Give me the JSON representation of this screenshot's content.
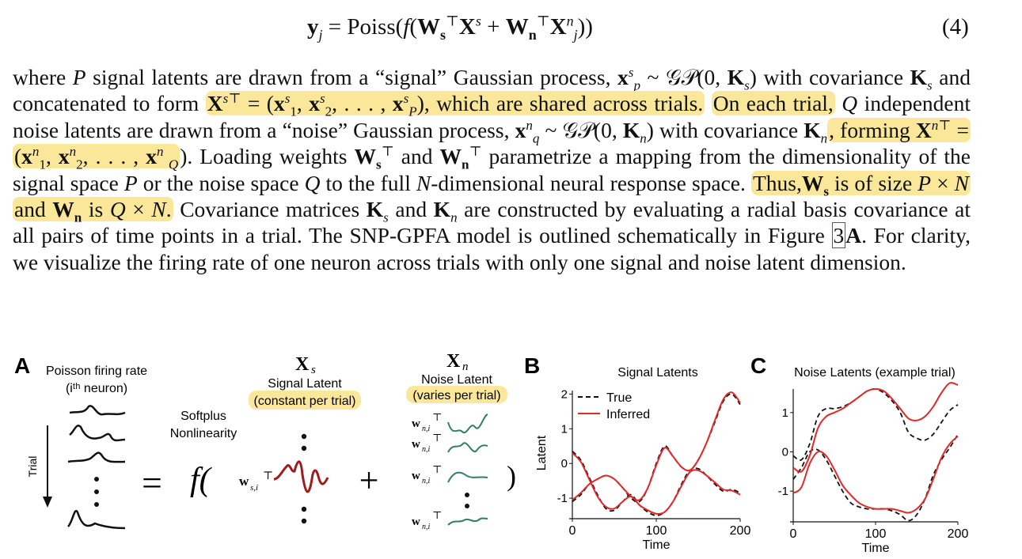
{
  "equation": {
    "lhs": "y",
    "lhs_sub": "j",
    "eq_text": "= Poiss(",
    "f": "f",
    "W_s": "W",
    "W_s_sub": "s",
    "T": "⊤",
    "X": "X",
    "X_sup_s": "s",
    "plus": "+",
    "W_n": "W",
    "W_n_sub": "n",
    "X_sup_n": "n",
    "X_sub_j": "j",
    "close": "))",
    "number": "(4)"
  },
  "paragraph": {
    "s01": "where ",
    "s02": "P",
    "s03": " signal latents are drawn from a “signal” Gaussian process, ",
    "s04": "x",
    "s05": " ~ ",
    "s06": "𝒢𝒫(0, ",
    "s07": "K",
    "s08": ") with covariance ",
    "s09": " and concatenated to form ",
    "s10": " = (",
    "s11": ", . . . , ",
    "s12": "), which are shared across trials.",
    "s13": "On each trial,",
    "s14": " Q",
    "s15": " independent noise latents are drawn from a “noise” Gaussian process, ",
    "s16": ") with covariance ",
    "s17": ", forming ",
    "s18": "). Loading weights ",
    "s19": " and ",
    "s20": " parametrize a mapping from the dimensionality of the signal space ",
    "s21": " or the noise space ",
    "s22": " to the full ",
    "s23": "N",
    "s24": "-dimensional neural response space. ",
    "s25": "Thus,",
    "s26": " is of size ",
    "s27": " × ",
    "s28": " and ",
    "s29": " is ",
    "s30": ".",
    "s31": " Covariance matrices ",
    "s32": " are constructed by evaluating a radial basis covariance at all pairs of time points in a trial. The SNP-GPFA model is outlined schematically in Figure ",
    "s33": "3",
    "s34": "A",
    "s35": ". For clarity, we visualize the firing rate of one neuron across trials with only one signal and noise latent dimension.",
    "p_sub": "p",
    "q_sub": "q",
    "s_sub": "s",
    "n_sub": "n",
    "one": "1",
    "two": "2"
  },
  "figure": {
    "panel_a": {
      "label": "A",
      "firing_title": "Poisson firing rate",
      "firing_sub": "(iᵗʰ neuron)",
      "trial_label": "Trial",
      "equals": "=",
      "nonlinearity_1": "Softplus",
      "nonlinearity_2": "Nonlinearity",
      "f_open": "f(",
      "signal_symbol": "X",
      "signal_symbol_sub": "s",
      "signal_title": "Signal Latent",
      "signal_note": "(constant per trial)",
      "weight_signal": "w",
      "weight_signal_sub": "s,i",
      "plus": "+",
      "noise_symbol": "X",
      "noise_symbol_sub": "n",
      "noise_title": "Noise Latent",
      "noise_note": "(varies per trial)",
      "weight_noise": "w",
      "weight_noise_sub": "n,i",
      "transpose": "⊤",
      "close_paren": ")"
    },
    "colors": {
      "signal": "#a01b1b",
      "noise": "#2f7f63",
      "inferred": "#e02a2a",
      "true": "#111111",
      "highlight": "#fbe79a"
    }
  },
  "chart_data": [
    {
      "panel": "B",
      "type": "line",
      "title": "Signal Latents",
      "xlabel": "Time",
      "ylabel": "Latent",
      "xlim": [
        0,
        200
      ],
      "ylim": [
        -1.5,
        2.1
      ],
      "xticks": [
        0,
        100,
        200
      ],
      "yticks": [
        -1,
        0,
        1,
        2
      ],
      "legend": "top-left",
      "series": [
        {
          "name": "True",
          "style": "dashed",
          "color": "#111111",
          "x": [
            0,
            10,
            20,
            30,
            40,
            50,
            60,
            70,
            80,
            90,
            100,
            110,
            120,
            130,
            140,
            150,
            160,
            170,
            180,
            190,
            200
          ],
          "y": [
            0.35,
            0.1,
            -0.4,
            -0.9,
            -1.3,
            -1.35,
            -1.1,
            -0.9,
            -1.2,
            -1.4,
            -1.5,
            -1.4,
            -1.1,
            -0.6,
            -0.2,
            -0.15,
            -0.35,
            -0.6,
            -0.8,
            -0.75,
            -0.85
          ]
        },
        {
          "name": "True",
          "style": "dashed",
          "color": "#111111",
          "x": [
            0,
            10,
            20,
            30,
            40,
            50,
            60,
            70,
            80,
            90,
            100,
            110,
            120,
            130,
            140,
            150,
            160,
            170,
            180,
            190,
            200
          ],
          "y": [
            -1.1,
            -0.9,
            -0.6,
            -0.45,
            -0.35,
            -0.45,
            -0.7,
            -1.0,
            -1.1,
            -0.7,
            0.0,
            0.5,
            0.2,
            -0.1,
            -0.2,
            0.1,
            0.6,
            1.2,
            1.8,
            2.0,
            1.7
          ]
        },
        {
          "name": "Inferred",
          "style": "solid",
          "color": "#e02a2a",
          "x": [
            0,
            10,
            20,
            30,
            40,
            50,
            60,
            70,
            80,
            90,
            100,
            110,
            120,
            130,
            140,
            150,
            160,
            170,
            180,
            190,
            200
          ],
          "y": [
            0.3,
            0.05,
            -0.45,
            -0.95,
            -1.25,
            -1.3,
            -1.1,
            -0.95,
            -1.2,
            -1.35,
            -1.45,
            -1.4,
            -1.1,
            -0.65,
            -0.25,
            -0.2,
            -0.35,
            -0.55,
            -0.75,
            -0.78,
            -0.9
          ]
        },
        {
          "name": "Inferred",
          "style": "solid",
          "color": "#e02a2a",
          "x": [
            0,
            10,
            20,
            30,
            40,
            50,
            60,
            70,
            80,
            90,
            100,
            110,
            120,
            130,
            140,
            150,
            160,
            170,
            180,
            190,
            200
          ],
          "y": [
            -1.05,
            -0.85,
            -0.6,
            -0.45,
            -0.35,
            -0.45,
            -0.7,
            -0.95,
            -1.05,
            -0.7,
            -0.05,
            0.45,
            0.2,
            -0.1,
            -0.2,
            0.1,
            0.6,
            1.25,
            1.85,
            2.05,
            1.75
          ]
        }
      ]
    },
    {
      "panel": "C",
      "type": "line",
      "title": "Noise Latents (example trial)",
      "xlabel": "Time",
      "ylabel": "",
      "xlim": [
        0,
        200
      ],
      "ylim": [
        -1.7,
        1.6
      ],
      "xticks": [
        0,
        100,
        200
      ],
      "yticks": [
        -1,
        0,
        1
      ],
      "legend": "none",
      "series": [
        {
          "name": "",
          "style": "dashed",
          "color": "#111111",
          "x": [
            0,
            10,
            20,
            30,
            40,
            50,
            60,
            70,
            80,
            90,
            100,
            110,
            120,
            130,
            140,
            150,
            160,
            170,
            180,
            190,
            200
          ],
          "y": [
            -0.1,
            -0.2,
            0.2,
            0.9,
            1.1,
            1.1,
            1.15,
            1.25,
            1.4,
            1.55,
            1.6,
            1.5,
            1.3,
            1.0,
            0.5,
            0.35,
            0.3,
            0.45,
            0.75,
            1.05,
            1.2
          ]
        },
        {
          "name": "",
          "style": "dashed",
          "color": "#111111",
          "x": [
            0,
            10,
            20,
            30,
            40,
            50,
            60,
            70,
            80,
            90,
            100,
            110,
            120,
            130,
            140,
            150,
            160,
            170,
            180,
            190,
            200
          ],
          "y": [
            -0.7,
            -0.4,
            0.0,
            0.05,
            -0.2,
            -0.6,
            -1.0,
            -1.3,
            -1.4,
            -1.45,
            -1.45,
            -1.45,
            -1.5,
            -1.6,
            -1.75,
            -1.6,
            -1.2,
            -0.6,
            -0.2,
            0.1,
            0.45
          ]
        },
        {
          "name": "",
          "style": "solid",
          "color": "#e02a2a",
          "x": [
            0,
            10,
            20,
            30,
            40,
            50,
            60,
            70,
            80,
            90,
            100,
            110,
            120,
            130,
            140,
            150,
            160,
            170,
            180,
            190,
            200
          ],
          "y": [
            -0.4,
            -0.5,
            -0.1,
            0.6,
            0.9,
            1.0,
            1.1,
            1.25,
            1.4,
            1.55,
            1.6,
            1.55,
            1.35,
            1.1,
            0.85,
            0.8,
            0.9,
            1.15,
            1.5,
            1.75,
            1.7
          ]
        },
        {
          "name": "",
          "style": "solid",
          "color": "#e02a2a",
          "x": [
            0,
            10,
            20,
            30,
            40,
            50,
            60,
            70,
            80,
            90,
            100,
            110,
            120,
            130,
            140,
            150,
            160,
            170,
            180,
            190,
            200
          ],
          "y": [
            -1.05,
            -0.9,
            -0.3,
            0.0,
            -0.1,
            -0.45,
            -0.85,
            -1.1,
            -1.3,
            -1.4,
            -1.45,
            -1.45,
            -1.45,
            -1.5,
            -1.55,
            -1.45,
            -1.2,
            -0.7,
            -0.15,
            0.2,
            0.4
          ]
        }
      ]
    }
  ]
}
